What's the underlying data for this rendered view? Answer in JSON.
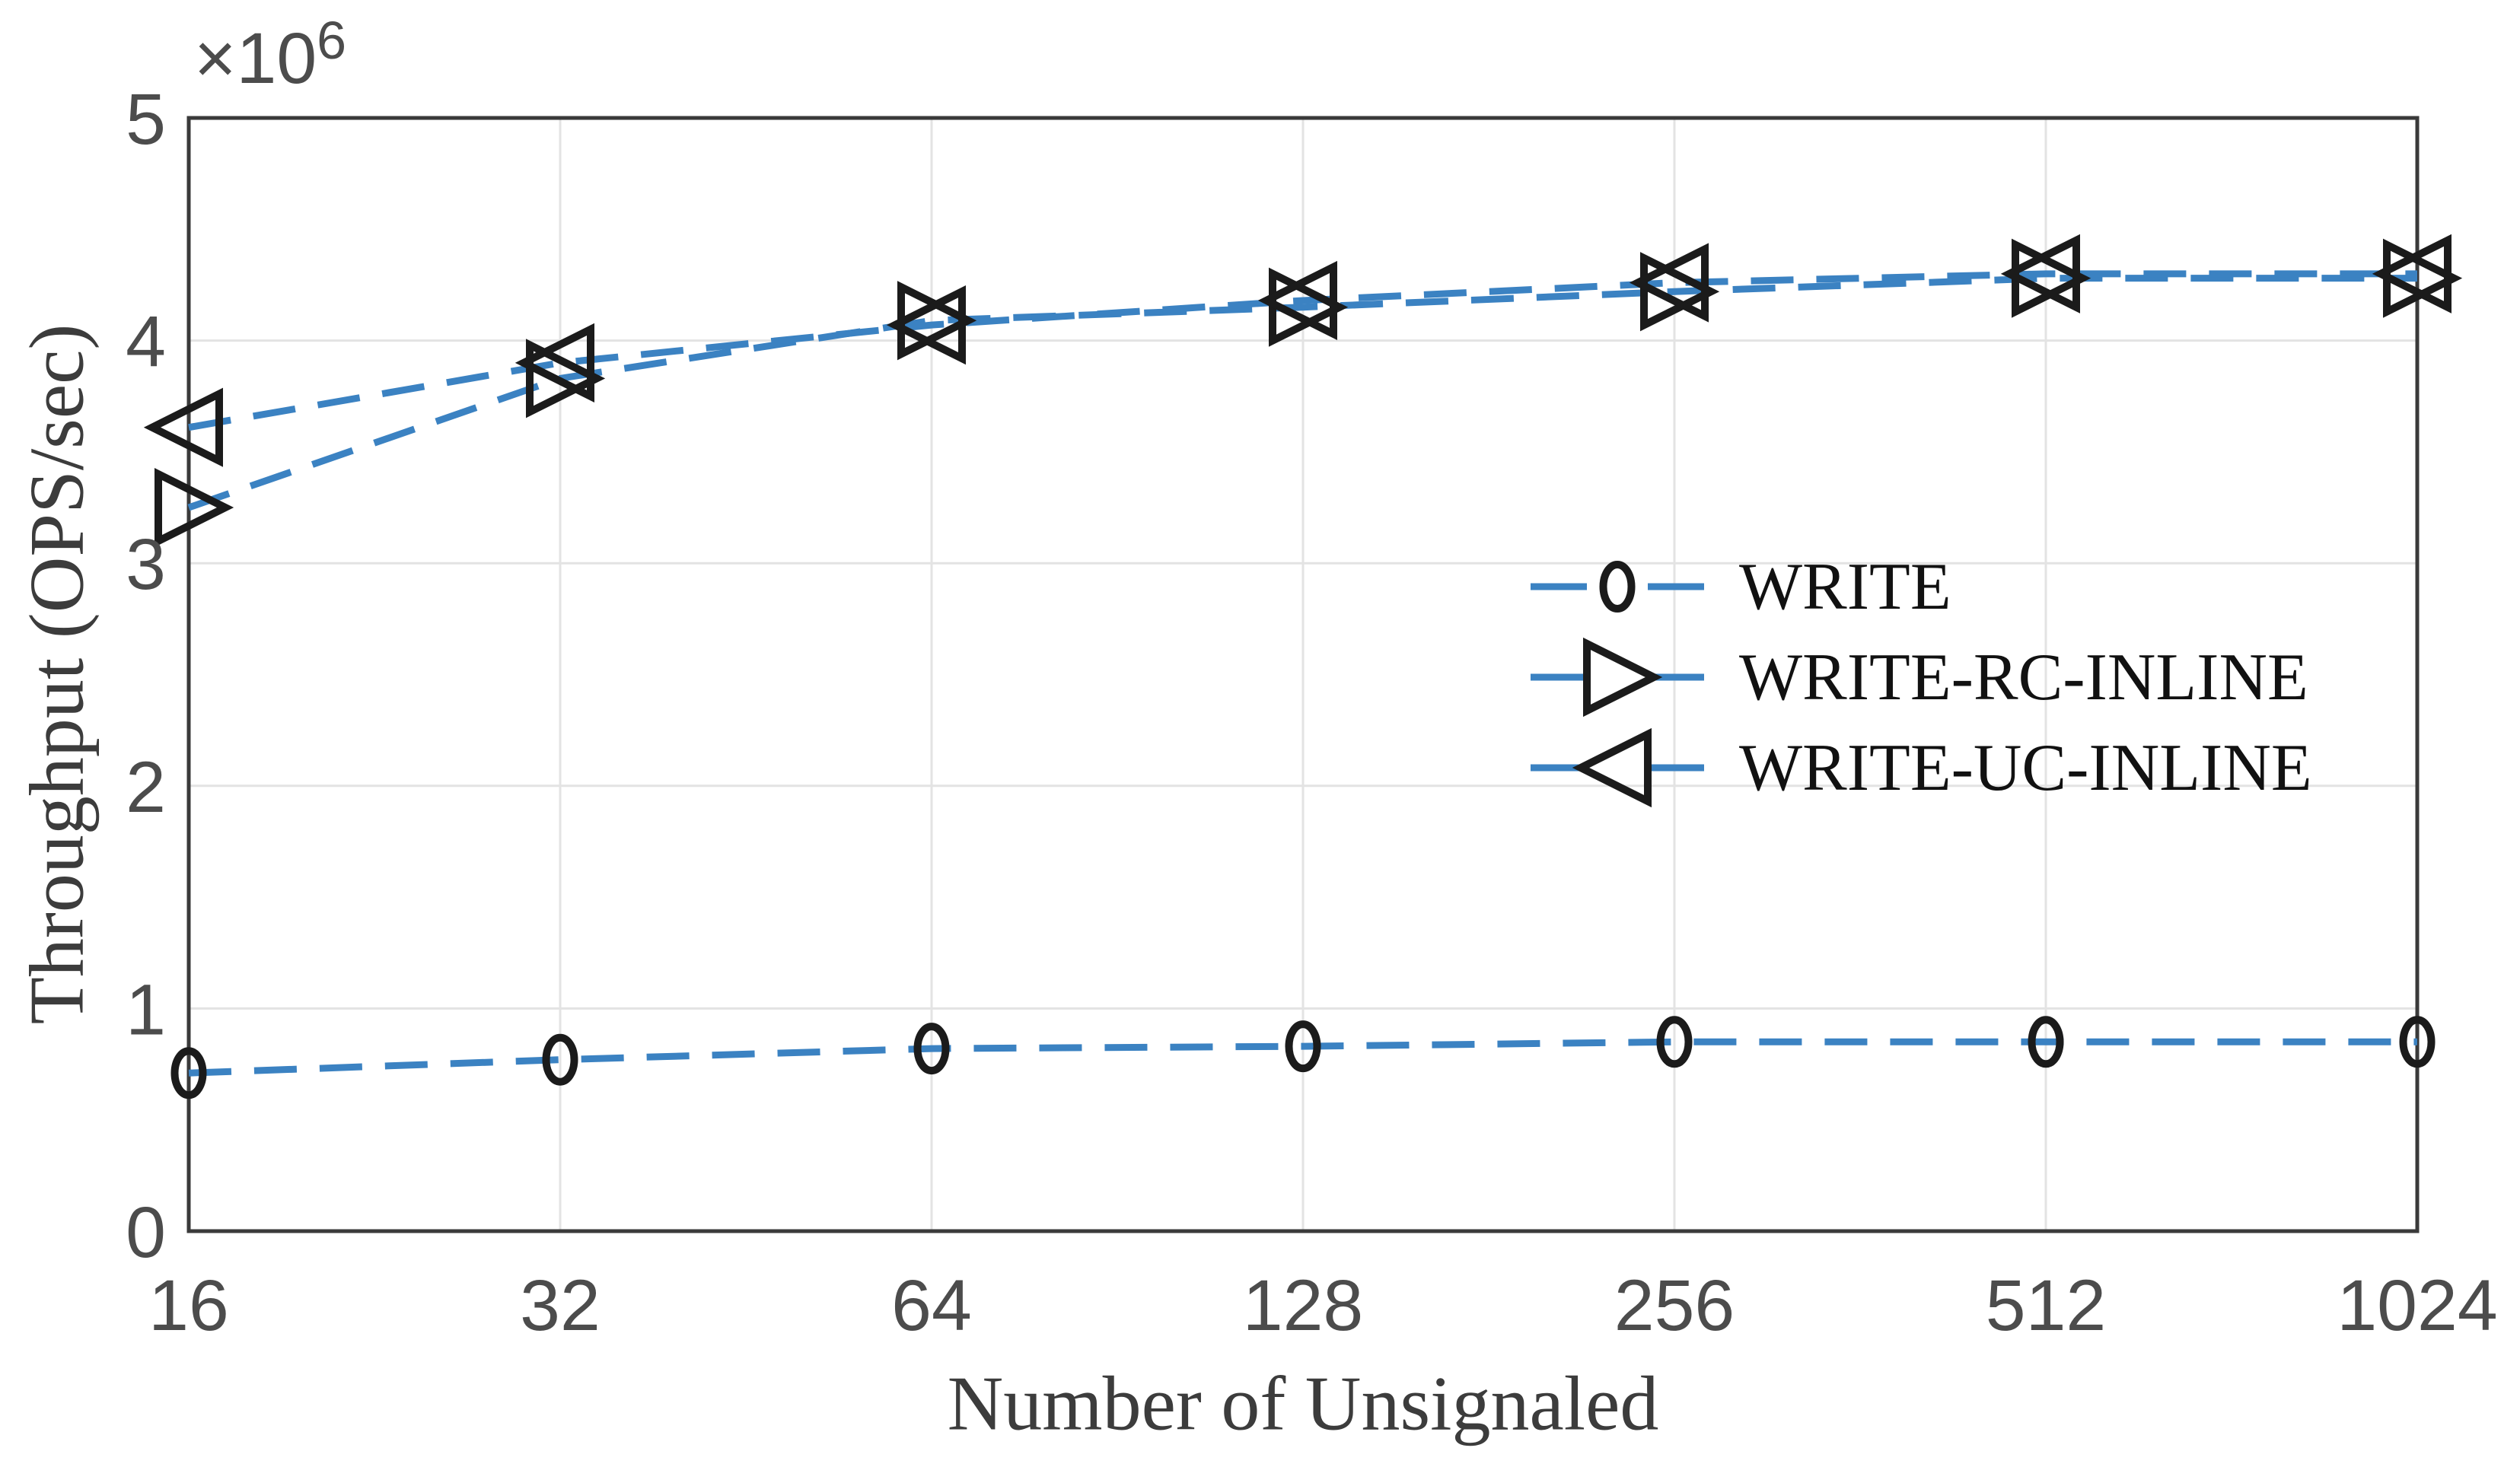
{
  "figure": {
    "offset_base": "×10",
    "offset_exponent": "6"
  },
  "chart_data": {
    "type": "line",
    "title": "",
    "xlabel": "Number of Unsignaled",
    "ylabel": "Throughput (OPS/sec)",
    "x_scale": "log2",
    "x": [
      16,
      32,
      64,
      128,
      256,
      512,
      1024
    ],
    "x_tick_labels": [
      "16",
      "32",
      "64",
      "128",
      "256",
      "512",
      "1024"
    ],
    "y_ticks_e6": [
      0,
      1,
      2,
      3,
      4,
      5
    ],
    "y_tick_labels": [
      "0",
      "1",
      "2",
      "3",
      "4",
      "5"
    ],
    "ylim_e6": [
      0,
      5
    ],
    "y_offset_text": "×10^6",
    "grid": true,
    "line_style": "dashed",
    "line_color": "#3b82c2",
    "marker_color": "#1b1b1b",
    "grid_color": "#e3e3e3",
    "axis_color": "#3a3a3a",
    "tick_label_color": "#4c4c4c",
    "legend_position": "middle-right",
    "series": [
      {
        "name": "WRITE",
        "marker": "circle",
        "values_e6": [
          0.71,
          0.77,
          0.82,
          0.83,
          0.85,
          0.85,
          0.85
        ]
      },
      {
        "name": "WRITE-RC-INLINE",
        "marker": "triangle-right",
        "values_e6": [
          3.25,
          3.83,
          4.09,
          4.15,
          4.22,
          4.28,
          4.28
        ]
      },
      {
        "name": "WRITE-UC-INLINE",
        "marker": "triangle-left",
        "values_e6": [
          3.61,
          3.9,
          4.07,
          4.18,
          4.26,
          4.3,
          4.3
        ]
      }
    ]
  }
}
